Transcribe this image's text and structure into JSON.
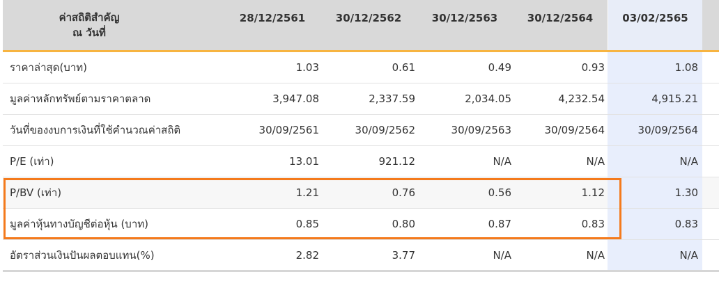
{
  "header": {
    "label_line1": "ค่าสถิติสำคัญ",
    "label_line2": "ณ วันที่",
    "dates": [
      "28/12/2561",
      "30/12/2562",
      "30/12/2563",
      "30/12/2564",
      "03/02/2565"
    ]
  },
  "rows": [
    {
      "label": "ราคาล่าสุด(บาท)",
      "values": [
        "1.03",
        "0.61",
        "0.49",
        "0.93",
        "1.08"
      ]
    },
    {
      "label": "มูลค่าหลักทรัพย์ตามราคาตลาด",
      "values": [
        "3,947.08",
        "2,337.59",
        "2,034.05",
        "4,232.54",
        "4,915.21"
      ]
    },
    {
      "label": "วันที่ของงบการเงินที่ใช้คำนวณค่าสถิติ",
      "values": [
        "30/09/2561",
        "30/09/2562",
        "30/09/2563",
        "30/09/2564",
        "30/09/2564"
      ]
    },
    {
      "label": "P/E (เท่า)",
      "values": [
        "13.01",
        "921.12",
        "N/A",
        "N/A",
        "N/A"
      ]
    },
    {
      "label": "P/BV (เท่า)",
      "values": [
        "1.21",
        "0.76",
        "0.56",
        "1.12",
        "1.30"
      ]
    },
    {
      "label": "มูลค่าหุ้นทางบัญชีต่อหุ้น (บาท)",
      "values": [
        "0.85",
        "0.80",
        "0.87",
        "0.83",
        "0.83"
      ]
    },
    {
      "label": "อัตราส่วนเงินปันผลตอบแทน(%)",
      "values": [
        "2.82",
        "3.77",
        "N/A",
        "N/A",
        "N/A"
      ]
    }
  ],
  "highlight_color": "#f47a1c",
  "header_accent_color": "#f7b441"
}
